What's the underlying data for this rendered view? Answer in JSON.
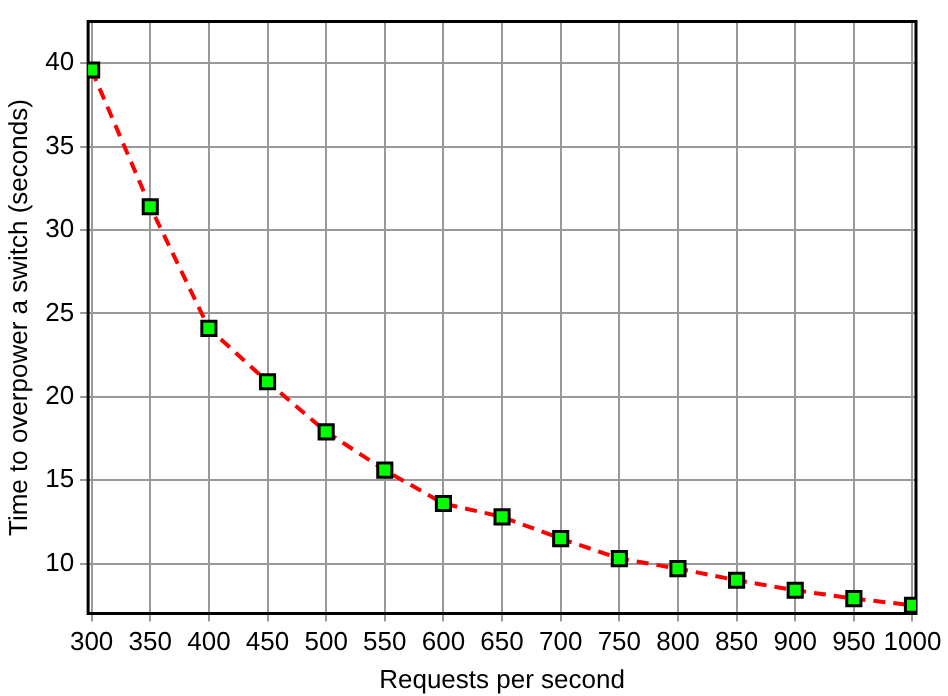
{
  "chart_data": {
    "type": "line",
    "xlabel": "Requests per second",
    "ylabel": "Time to overpower a switch (seconds)",
    "x": [
      300,
      350,
      400,
      450,
      500,
      550,
      600,
      650,
      700,
      750,
      800,
      850,
      900,
      950,
      1000
    ],
    "series": [
      {
        "color": "#ff0000",
        "colors": [
          "#00ff00",
          "#00ff00",
          "#00ff00",
          "#00ff00",
          "#00ff00",
          "#00ff00",
          "#00ff00",
          "#00ff00",
          "#00ff00",
          "#00ff00",
          "#00ff00",
          "#00ff00",
          "#00ff00",
          "#00ff00",
          "#00ff00"
        ],
        "values": [
          39.6,
          31.4,
          24.1,
          20.9,
          17.9,
          15.6,
          13.6,
          12.8,
          11.5,
          10.3,
          9.7,
          9.0,
          8.4,
          7.9,
          7.5
        ]
      }
    ],
    "xlim": [
      297,
      1003
    ],
    "xticks": [
      300,
      350,
      400,
      450,
      500,
      550,
      600,
      650,
      700,
      750,
      800,
      850,
      900,
      950,
      1000
    ],
    "ylim": [
      7,
      42.5
    ],
    "yticks": [
      10,
      15,
      20,
      25,
      30,
      35,
      40
    ],
    "grid": true,
    "marker": "square",
    "line_style": "dashed",
    "legend": false
  }
}
